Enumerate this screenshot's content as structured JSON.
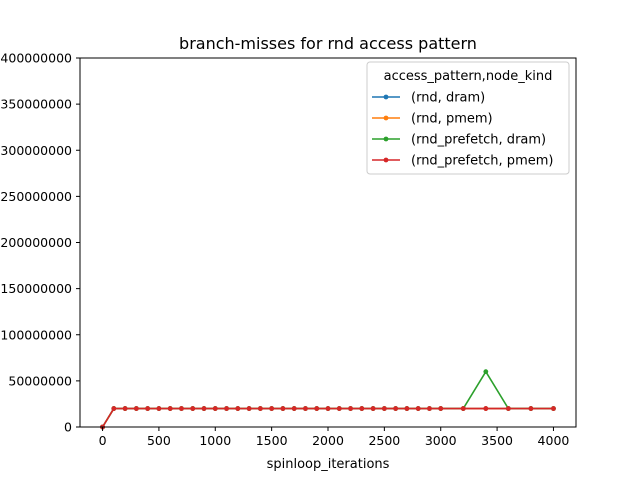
{
  "chart_data": {
    "type": "line",
    "title": "branch-misses for rnd access pattern",
    "xlabel": "spinloop_iterations",
    "ylabel": "",
    "xlim": [
      -200,
      4200
    ],
    "ylim": [
      0,
      400000000
    ],
    "xticks": [
      0,
      500,
      1000,
      1500,
      2000,
      2500,
      3000,
      3500,
      4000
    ],
    "xtick_labels": [
      "0",
      "500",
      "1000",
      "1500",
      "2000",
      "2500",
      "3000",
      "3500",
      "4000"
    ],
    "yticks": [
      0,
      50000000,
      100000000,
      150000000,
      200000000,
      250000000,
      300000000,
      350000000,
      400000000
    ],
    "ytick_labels": [
      "0",
      "50000000",
      "100000000",
      "150000000",
      "200000000",
      "250000000",
      "300000000",
      "350000000",
      "400000000"
    ],
    "legend": {
      "title": "access_pattern,node_kind",
      "placement": "upper right"
    },
    "x": [
      0,
      100,
      200,
      300,
      400,
      500,
      600,
      700,
      800,
      900,
      1000,
      1100,
      1200,
      1300,
      1400,
      1500,
      1600,
      1700,
      1800,
      1900,
      2000,
      2100,
      2200,
      2300,
      2400,
      2500,
      2600,
      2700,
      2800,
      2900,
      3000,
      3200,
      3400,
      3600,
      3800,
      4000
    ],
    "series": [
      {
        "name": "(rnd, dram)",
        "color": "#1f77b4",
        "values": [
          0,
          20000000,
          20000000,
          20000000,
          20000000,
          20000000,
          20000000,
          20000000,
          20000000,
          20000000,
          20000000,
          20000000,
          20000000,
          20000000,
          20000000,
          20000000,
          20000000,
          20000000,
          20000000,
          20000000,
          20000000,
          20000000,
          20000000,
          20000000,
          20000000,
          20000000,
          20000000,
          20000000,
          20000000,
          20000000,
          20000000,
          20000000,
          20000000,
          20000000,
          20000000,
          20000000
        ]
      },
      {
        "name": "(rnd, pmem)",
        "color": "#ff7f0e",
        "values": [
          0,
          20000000,
          20000000,
          20000000,
          20000000,
          20000000,
          20000000,
          20000000,
          20000000,
          20000000,
          20000000,
          20000000,
          20000000,
          20000000,
          20000000,
          20000000,
          20000000,
          20000000,
          20000000,
          20000000,
          20000000,
          20000000,
          20000000,
          20000000,
          20000000,
          20000000,
          20000000,
          20000000,
          20000000,
          20000000,
          20000000,
          20000000,
          20000000,
          20000000,
          20000000,
          20000000
        ]
      },
      {
        "name": "(rnd_prefetch, dram)",
        "color": "#2ca02c",
        "values": [
          0,
          20000000,
          20000000,
          20000000,
          20000000,
          20000000,
          20000000,
          20000000,
          20000000,
          20000000,
          20000000,
          20000000,
          20000000,
          20000000,
          20000000,
          20000000,
          20000000,
          20000000,
          20000000,
          20000000,
          20000000,
          20000000,
          20000000,
          20000000,
          20000000,
          20000000,
          20000000,
          20000000,
          20000000,
          20000000,
          20000000,
          20000000,
          60000000,
          20000000,
          20000000,
          20000000
        ]
      },
      {
        "name": "(rnd_prefetch, pmem)",
        "color": "#d62728",
        "values": [
          0,
          20000000,
          20000000,
          20000000,
          20000000,
          20000000,
          20000000,
          20000000,
          20000000,
          20000000,
          20000000,
          20000000,
          20000000,
          20000000,
          20000000,
          20000000,
          20000000,
          20000000,
          20000000,
          20000000,
          20000000,
          20000000,
          20000000,
          20000000,
          20000000,
          20000000,
          20000000,
          20000000,
          20000000,
          20000000,
          20000000,
          20000000,
          20000000,
          20000000,
          20000000,
          20000000
        ]
      }
    ],
    "grid": false
  }
}
